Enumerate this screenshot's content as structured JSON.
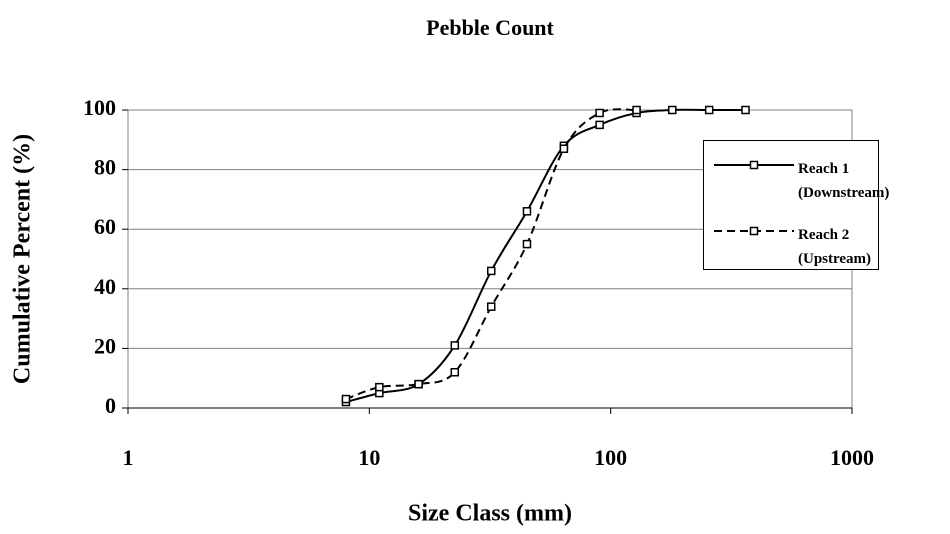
{
  "chart_data": {
    "type": "line",
    "title": "Pebble Count",
    "xlabel": "Size Class (mm)",
    "ylabel": "Cumulative Percent (%)",
    "xscale": "log",
    "x": [
      8,
      11,
      16,
      22.6,
      32,
      45,
      64,
      90,
      128,
      180,
      256,
      362
    ],
    "series": [
      {
        "name": "Reach 1 (Downstream)",
        "color": "#000000",
        "dash": false,
        "values": [
          2,
          5,
          8,
          21,
          46,
          66,
          88,
          95,
          99,
          100,
          100,
          100
        ]
      },
      {
        "name": "Reach 2 (Upstream)",
        "color": "#000000",
        "dash": true,
        "values": [
          3,
          7,
          8,
          12,
          34,
          55,
          87,
          99,
          100,
          null,
          null,
          null
        ]
      }
    ],
    "xlim": [
      1,
      1000
    ],
    "xticks": [
      1,
      10,
      100,
      1000
    ],
    "ylim": [
      0,
      100
    ],
    "yticks": [
      0,
      20,
      40,
      60,
      80,
      100
    ],
    "grid": true,
    "legend": "right"
  }
}
